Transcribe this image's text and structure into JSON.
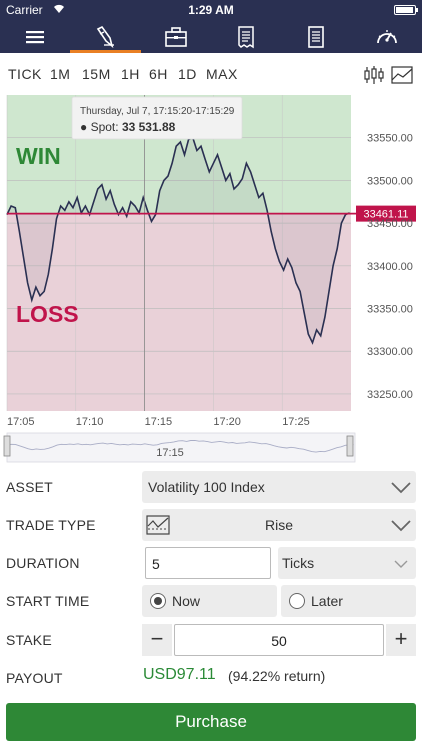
{
  "status": {
    "carrier": "Carrier",
    "time": "1:29 AM"
  },
  "nav": {
    "items": [
      "menu-icon",
      "trade-icon",
      "portfolio-icon",
      "statement-icon",
      "news-icon",
      "speed-icon"
    ]
  },
  "timeframes": [
    "TICK",
    "1M",
    "15M",
    "1H",
    "6H",
    "1D",
    "MAX"
  ],
  "chart_data": {
    "type": "line",
    "tooltip": {
      "date": "Thursday, Jul 7, 17:15:20-17:15:29",
      "spot_label": "Spot:",
      "spot_value": "33 531.88"
    },
    "win_label": "WIN",
    "loss_label": "LOSS",
    "barrier": 33461.11,
    "barrier_label": "33461.11",
    "ylim": [
      33230,
      33600
    ],
    "yticks": [
      33550,
      33500,
      33450,
      33400,
      33350,
      33300,
      33250
    ],
    "ytick_labels": [
      "33550.00",
      "33500.00",
      "33450.00",
      "33400.00",
      "33350.00",
      "33300.00",
      "33250.00"
    ],
    "xlim": [
      0,
      25
    ],
    "xticks": [
      0,
      5,
      10,
      15,
      20
    ],
    "xtick_labels": [
      "17:05",
      "17:10",
      "17:15",
      "17:20",
      "17:25"
    ],
    "navigator_label": "17:15",
    "series": [
      {
        "x": [
          0,
          0.3,
          0.6,
          0.9,
          1.2,
          1.5,
          1.8,
          2.1,
          2.4,
          2.7,
          3.0,
          3.3,
          3.6,
          3.9,
          4.2,
          4.5,
          4.8,
          5.1,
          5.4,
          5.7,
          6.0,
          6.3,
          6.6,
          6.9,
          7.2,
          7.5,
          7.8,
          8.1,
          8.4,
          8.7,
          9.0,
          9.3,
          9.6,
          9.9,
          10.2,
          10.5,
          10.8,
          11.1,
          11.4,
          11.7,
          12.0,
          12.3,
          12.6,
          12.9,
          13.2,
          13.5,
          13.8,
          14.1,
          14.4,
          14.7,
          15.0,
          15.3,
          15.6,
          15.9,
          16.2,
          16.5,
          16.8,
          17.1,
          17.4,
          17.7,
          18.0,
          18.3,
          18.6,
          18.9,
          19.2,
          19.5,
          19.8,
          20.1,
          20.4,
          20.7,
          21.0,
          21.3,
          21.6,
          21.9,
          22.2,
          22.5,
          22.8,
          23.1,
          23.4,
          23.7,
          24.0,
          24.3,
          24.6,
          24.9
        ],
        "values": [
          33460,
          33470,
          33468,
          33440,
          33410,
          33380,
          33360,
          33375,
          33365,
          33370,
          33390,
          33420,
          33455,
          33470,
          33465,
          33475,
          33468,
          33480,
          33462,
          33470,
          33460,
          33475,
          33490,
          33495,
          33478,
          33488,
          33472,
          33460,
          33468,
          33458,
          33475,
          33470,
          33462,
          33480,
          33465,
          33452,
          33460,
          33488,
          33500,
          33505,
          33520,
          33540,
          33545,
          33530,
          33548,
          33550,
          33535,
          33540,
          33525,
          33510,
          33520,
          33530,
          33515,
          33500,
          33508,
          33490,
          33495,
          33502,
          33520,
          33510,
          33495,
          33480,
          33485,
          33465,
          33440,
          33420,
          33405,
          33395,
          33408,
          33398,
          33380,
          33370,
          33345,
          33320,
          33310,
          33325,
          33318,
          33340,
          33370,
          33400,
          33420,
          33450,
          33460,
          33462
        ]
      }
    ]
  },
  "form": {
    "asset": {
      "label": "ASSET",
      "value": "Volatility 100 Index"
    },
    "trade_type": {
      "label": "TRADE TYPE",
      "value": "Rise"
    },
    "duration": {
      "label": "DURATION",
      "value": "5",
      "unit": "Ticks"
    },
    "start_time": {
      "label": "START TIME",
      "option_now": "Now",
      "option_later": "Later"
    },
    "stake": {
      "label": "STAKE",
      "value": "50",
      "minus": "−",
      "plus": "+"
    },
    "payout": {
      "label": "PAYOUT",
      "value": "USD97.11",
      "return": "(94.22% return)"
    }
  },
  "purchase_label": "Purchase",
  "colors": {
    "nav_bg": "#2a3052",
    "accent": "#e98024",
    "win": "#2e8836",
    "loss": "#c0144b",
    "win_bg": "#cfe7cf",
    "loss_bg": "#e9d1d8",
    "barrier": "#c0144b"
  }
}
